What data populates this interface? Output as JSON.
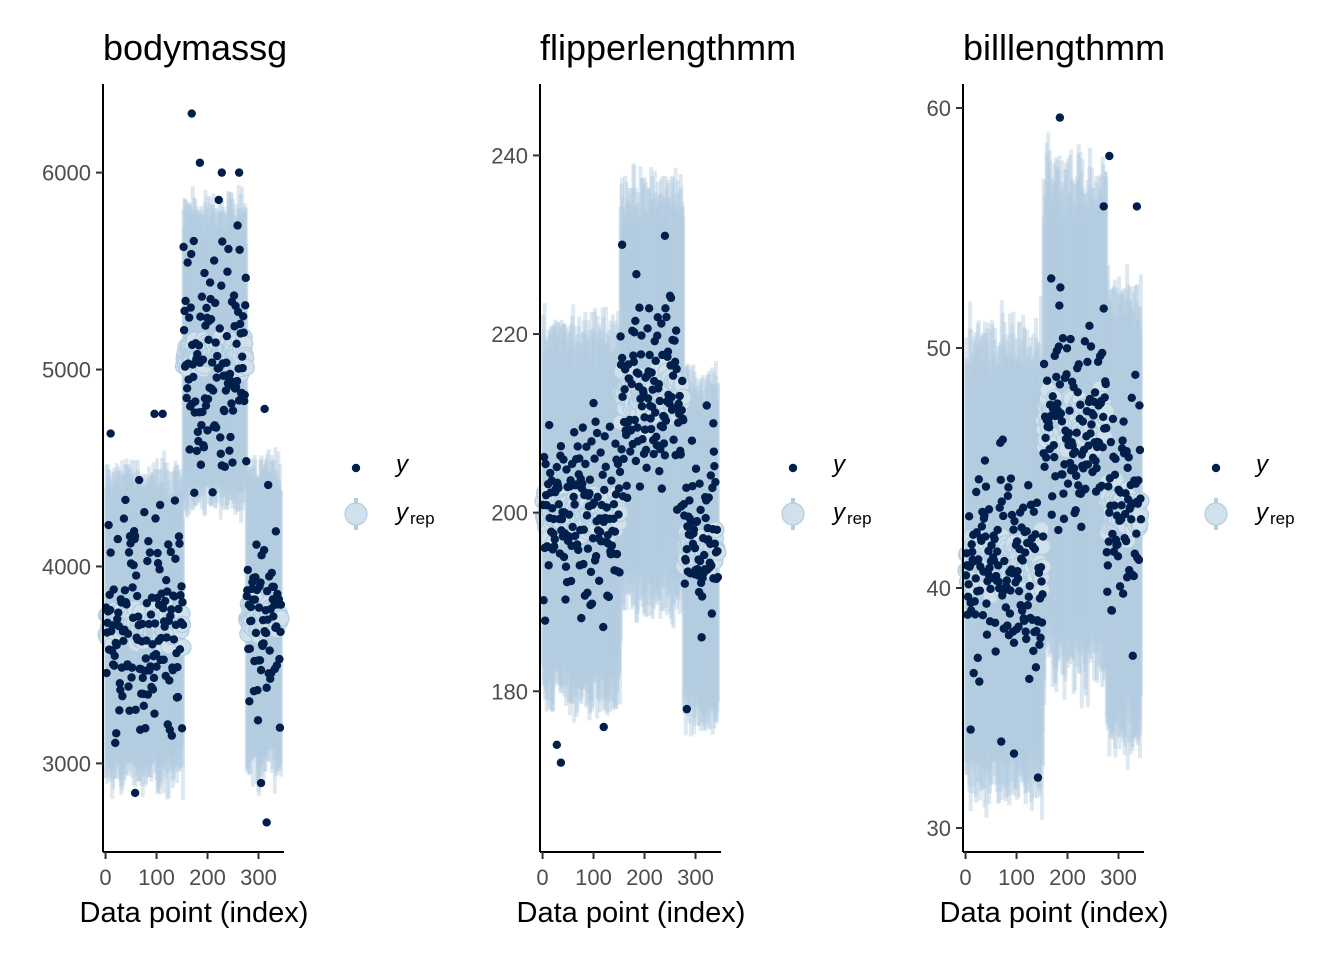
{
  "chart_data": [
    {
      "type": "scatter",
      "title": "bodymassg",
      "xlabel": "Data point (index)",
      "xlim": [
        -5,
        350
      ],
      "ylim": [
        2550,
        6450
      ],
      "x_ticks": [
        0,
        100,
        200,
        300
      ],
      "y_ticks": [
        3000,
        4000,
        5000,
        6000
      ],
      "legend": {
        "position": "right",
        "entries": [
          {
            "symbol": "y",
            "sub": ""
          },
          {
            "symbol": "y",
            "sub": "rep"
          }
        ]
      },
      "segments": [
        {
          "x_start": 1,
          "x_end": 152,
          "rep_center": 3700,
          "rep_low": 2950,
          "rep_high": 4450,
          "obs_spread": 450
        },
        {
          "x_start": 153,
          "x_end": 276,
          "rep_center": 5076,
          "rep_low": 4350,
          "rep_high": 5820,
          "obs_spread": 520
        },
        {
          "x_start": 277,
          "x_end": 344,
          "rep_center": 3733,
          "rep_low": 2970,
          "rep_high": 4480,
          "obs_spread": 380
        }
      ],
      "highlight_points": [
        {
          "x": 169,
          "y": 6300
        },
        {
          "x": 185,
          "y": 6050
        },
        {
          "x": 228,
          "y": 6000
        },
        {
          "x": 262,
          "y": 6000
        },
        {
          "x": 312,
          "y": 4800
        },
        {
          "x": 316,
          "y": 2700
        },
        {
          "x": 58,
          "y": 2850
        },
        {
          "x": 305,
          "y": 2900
        },
        {
          "x": 10,
          "y": 4675
        },
        {
          "x": 96,
          "y": 4775
        },
        {
          "x": 112,
          "y": 4775
        }
      ],
      "series": [
        {
          "name": "y",
          "color": "#011f4b"
        },
        {
          "name": "y_rep",
          "color": "#b3cde0"
        }
      ]
    },
    {
      "type": "scatter",
      "title": "flipperlengthmm",
      "xlabel": "Data point (index)",
      "xlim": [
        -5,
        350
      ],
      "ylim": [
        162,
        248
      ],
      "x_ticks": [
        0,
        100,
        200,
        300
      ],
      "y_ticks": [
        180,
        200,
        220,
        240
      ],
      "legend": {
        "position": "right",
        "entries": [
          {
            "symbol": "y",
            "sub": ""
          },
          {
            "symbol": "y",
            "sub": "rep"
          }
        ]
      },
      "segments": [
        {
          "x_start": 1,
          "x_end": 152,
          "rep_center": 200,
          "rep_low": 175,
          "rep_high": 215,
          "obs_spread": 7
        },
        {
          "x_start": 153,
          "x_end": 276,
          "rep_center": 213,
          "rep_low": 195,
          "rep_high": 240,
          "obs_spread": 7
        },
        {
          "x_start": 277,
          "x_end": 344,
          "rep_center": 196,
          "rep_low": 175,
          "rep_high": 212,
          "obs_spread": 7
        }
      ],
      "highlight_points": [
        {
          "x": 240,
          "y": 231
        },
        {
          "x": 156,
          "y": 230
        },
        {
          "x": 28,
          "y": 174
        },
        {
          "x": 36,
          "y": 172
        },
        {
          "x": 120,
          "y": 176
        },
        {
          "x": 283,
          "y": 178
        },
        {
          "x": 335,
          "y": 210
        },
        {
          "x": 322,
          "y": 212
        }
      ],
      "series": [
        {
          "name": "y",
          "color": "#011f4b"
        },
        {
          "name": "y_rep",
          "color": "#b3cde0"
        }
      ]
    },
    {
      "type": "scatter",
      "title": "billlengthmm",
      "xlabel": "Data point (index)",
      "xlim": [
        -5,
        350
      ],
      "ylim": [
        29,
        61
      ],
      "x_ticks": [
        0,
        100,
        200,
        300
      ],
      "y_ticks": [
        30,
        40,
        50,
        60
      ],
      "legend": {
        "position": "right",
        "entries": [
          {
            "symbol": "y",
            "sub": ""
          },
          {
            "symbol": "y",
            "sub": "rep"
          }
        ]
      },
      "segments": [
        {
          "x_start": 1,
          "x_end": 152,
          "rep_center": 41,
          "rep_low": 32,
          "rep_high": 50,
          "obs_spread": 2.8
        },
        {
          "x_start": 153,
          "x_end": 276,
          "rep_center": 47,
          "rep_low": 37,
          "rep_high": 57,
          "obs_spread": 3
        },
        {
          "x_start": 277,
          "x_end": 344,
          "rep_center": 43,
          "rep_low": 34,
          "rep_high": 52,
          "obs_spread": 3.5
        }
      ],
      "highlight_points": [
        {
          "x": 185,
          "y": 59.6
        },
        {
          "x": 282,
          "y": 58
        },
        {
          "x": 336,
          "y": 55.9
        },
        {
          "x": 271,
          "y": 55.9
        },
        {
          "x": 142,
          "y": 32.1
        },
        {
          "x": 10,
          "y": 34.1
        },
        {
          "x": 95,
          "y": 33.1
        },
        {
          "x": 70,
          "y": 33.6
        }
      ],
      "series": [
        {
          "name": "y",
          "color": "#011f4b"
        },
        {
          "name": "y_rep",
          "color": "#b3cde0"
        }
      ]
    }
  ]
}
